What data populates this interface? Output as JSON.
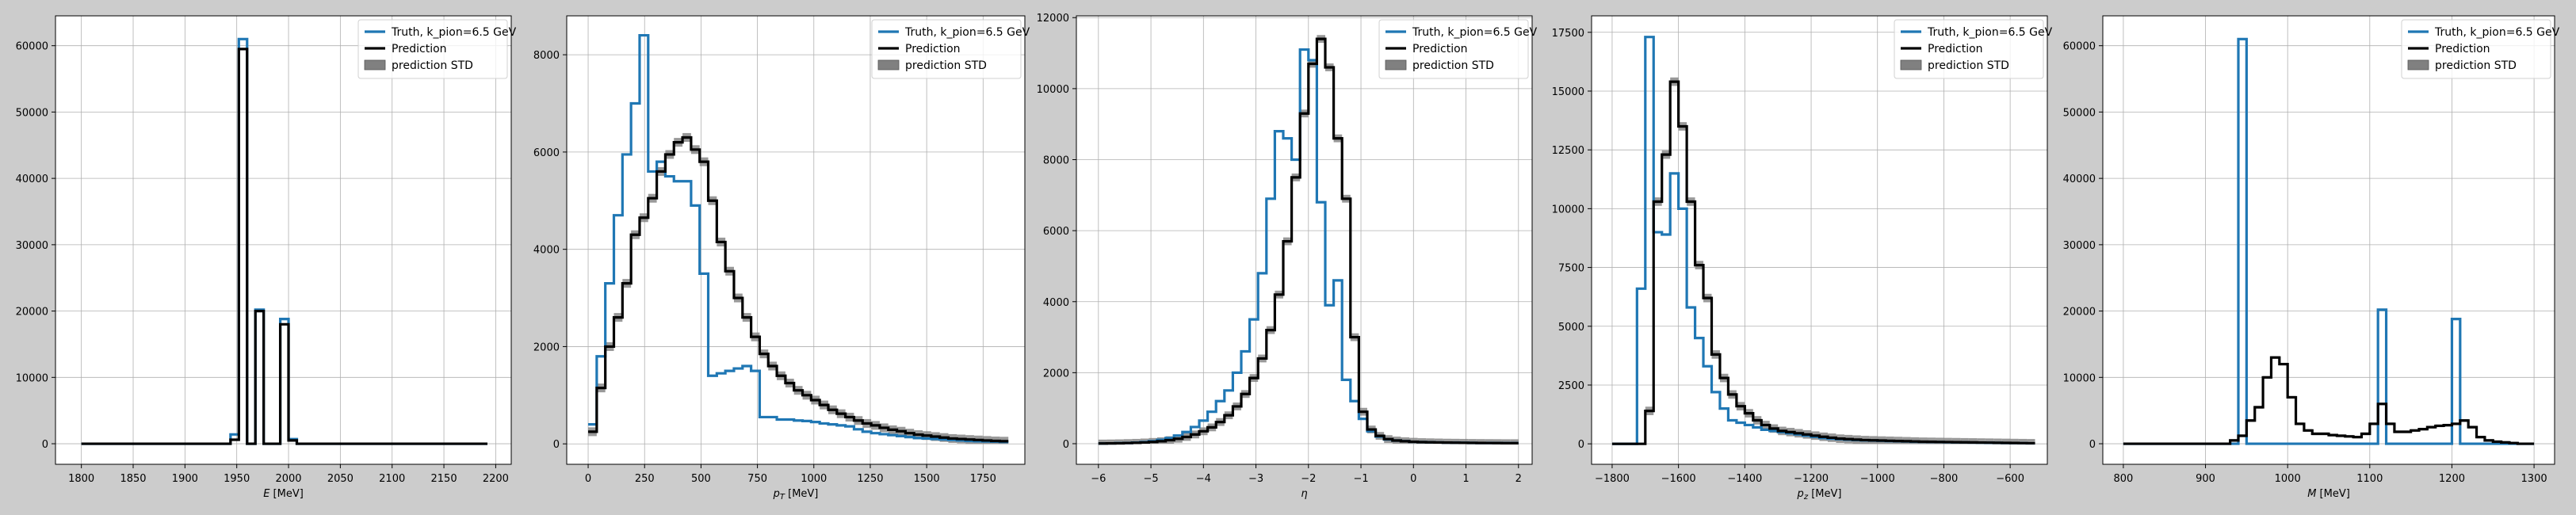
{
  "figure": {
    "background": "#cccccc"
  },
  "colors": {
    "truth": "#1f77b4",
    "prediction": "#000000",
    "std": "#808080",
    "grid": "#b0b0b0"
  },
  "legend": {
    "truth": "Truth, k_pion=6.5 GeV",
    "prediction": "Prediction",
    "std": "prediction STD",
    "placement": "top-right"
  },
  "chart_data": [
    {
      "type": "histogram",
      "name": "energy",
      "xlabel": {
        "pre": "",
        "sym": "E",
        "sub": "",
        "post": " [MeV]"
      },
      "ylabel": "",
      "grid": true,
      "xlim": [
        1775,
        2215
      ],
      "ylim": [
        -3100,
        64500
      ],
      "xticks": [
        1800,
        1850,
        1900,
        1950,
        2000,
        2050,
        2100,
        2150,
        2200
      ],
      "xtick_labels": [
        "1800",
        "1850",
        "1900",
        "1950",
        "2000",
        "2050",
        "2100",
        "2150",
        "2200"
      ],
      "yticks": [
        0,
        10000,
        20000,
        30000,
        40000,
        50000,
        60000
      ],
      "ytick_labels": [
        "0",
        "10000",
        "20000",
        "30000",
        "40000",
        "50000",
        "60000"
      ],
      "bins": {
        "start": 1800,
        "width": 8,
        "count": 49
      },
      "truth": [
        0,
        0,
        0,
        0,
        0,
        0,
        0,
        0,
        0,
        0,
        0,
        0,
        0,
        0,
        0,
        0,
        0,
        0,
        1400,
        61000,
        0,
        20200,
        0,
        0,
        18800,
        700,
        0,
        0,
        0,
        0,
        0,
        0,
        0,
        0,
        0,
        0,
        0,
        0,
        0,
        0,
        0,
        0,
        0,
        0,
        0,
        0,
        0,
        0,
        0
      ],
      "prediction": [
        0,
        0,
        0,
        0,
        0,
        0,
        0,
        0,
        0,
        0,
        0,
        0,
        0,
        0,
        0,
        0,
        0,
        0,
        600,
        59500,
        0,
        20000,
        0,
        0,
        18000,
        500,
        0,
        0,
        0,
        0,
        0,
        0,
        0,
        0,
        0,
        0,
        0,
        0,
        0,
        0,
        0,
        0,
        0,
        0,
        0,
        0,
        0,
        0,
        0
      ]
    },
    {
      "type": "histogram",
      "name": "pt",
      "xlabel": {
        "pre": "",
        "sym": "p",
        "sub": "T",
        "post": " [MeV]"
      },
      "ylabel": "",
      "grid": true,
      "xlim": [
        -95,
        1935
      ],
      "ylim": [
        -420,
        8800
      ],
      "xticks": [
        0,
        250,
        500,
        750,
        1000,
        1250,
        1500,
        1750
      ],
      "xtick_labels": [
        "0",
        "250",
        "500",
        "750",
        "1000",
        "1250",
        "1500",
        "1750"
      ],
      "yticks": [
        0,
        2000,
        4000,
        6000,
        8000
      ],
      "ytick_labels": [
        "0",
        "2000",
        "4000",
        "6000",
        "8000"
      ],
      "bins": {
        "start": 0,
        "width": 38,
        "count": 49
      },
      "truth": [
        400,
        1800,
        3300,
        4700,
        5950,
        7000,
        8400,
        5600,
        5800,
        5500,
        5400,
        5400,
        4900,
        3500,
        1400,
        1450,
        1500,
        1550,
        1600,
        1500,
        550,
        550,
        500,
        500,
        480,
        470,
        450,
        420,
        400,
        380,
        360,
        300,
        250,
        220,
        200,
        180,
        160,
        140,
        120,
        110,
        100,
        90,
        80,
        70,
        60,
        55,
        50,
        45,
        40
      ],
      "prediction": [
        250,
        1150,
        2000,
        2600,
        3300,
        4300,
        4650,
        5050,
        5600,
        5950,
        6200,
        6300,
        6050,
        5800,
        5000,
        4150,
        3550,
        3000,
        2600,
        2200,
        1850,
        1600,
        1400,
        1250,
        1100,
        1000,
        900,
        800,
        700,
        620,
        550,
        480,
        420,
        380,
        330,
        290,
        260,
        220,
        190,
        170,
        150,
        130,
        110,
        100,
        90,
        80,
        70,
        60,
        55
      ],
      "std_band": 90
    },
    {
      "type": "histogram",
      "name": "eta",
      "xlabel": {
        "pre": "",
        "sym": "η",
        "sub": "",
        "post": ""
      },
      "ylabel": "",
      "grid": true,
      "xlim": [
        -6.42,
        2.26
      ],
      "ylim": [
        -580,
        12050
      ],
      "xticks": [
        -6,
        -5,
        -4,
        -3,
        -2,
        -1,
        0,
        1,
        2
      ],
      "xtick_labels": [
        "−6",
        "−5",
        "−4",
        "−3",
        "−2",
        "−1",
        "0",
        "1",
        "2"
      ],
      "yticks": [
        0,
        2000,
        4000,
        6000,
        8000,
        10000,
        12000
      ],
      "ytick_labels": [
        "0",
        "2000",
        "4000",
        "6000",
        "8000",
        "10000",
        "12000"
      ],
      "bins": {
        "start": -6,
        "width": 0.16,
        "count": 50
      },
      "truth": [
        5,
        10,
        15,
        20,
        30,
        45,
        70,
        110,
        160,
        230,
        330,
        470,
        650,
        900,
        1200,
        1500,
        2000,
        2600,
        3500,
        4800,
        6900,
        8800,
        8600,
        8000,
        11100,
        10800,
        6800,
        3900,
        4600,
        1800,
        1200,
        700,
        350,
        200,
        120,
        90,
        70,
        55,
        45,
        40,
        35,
        30,
        28,
        25,
        22,
        20,
        20,
        18,
        15,
        15
      ],
      "prediction": [
        5,
        8,
        12,
        18,
        25,
        35,
        50,
        70,
        100,
        140,
        190,
        260,
        350,
        460,
        610,
        800,
        1050,
        1400,
        1850,
        2400,
        3200,
        4200,
        5700,
        7500,
        9300,
        10700,
        11400,
        10600,
        8600,
        6900,
        3000,
        900,
        400,
        220,
        130,
        90,
        70,
        55,
        45,
        40,
        35,
        30,
        28,
        25,
        22,
        20,
        18,
        17,
        15,
        15
      ],
      "std_band": 110
    },
    {
      "type": "histogram",
      "name": "pz",
      "xlabel": {
        "pre": "",
        "sym": "p",
        "sub": "z",
        "post": " [MeV]"
      },
      "ylabel": "",
      "grid": true,
      "xlim": [
        -1862,
        -488
      ],
      "ylim": [
        -870,
        18200
      ],
      "xticks": [
        -1800,
        -1600,
        -1400,
        -1200,
        -1000,
        -800,
        -600
      ],
      "xtick_labels": [
        "−1800",
        "−1600",
        "−1400",
        "−1200",
        "−1000",
        "−800",
        "−600"
      ],
      "yticks": [
        0,
        2500,
        5000,
        7500,
        10000,
        12500,
        15000,
        17500
      ],
      "ytick_labels": [
        "0",
        "2500",
        "5000",
        "7500",
        "10000",
        "12500",
        "15000",
        "17500"
      ],
      "bins": {
        "start": -1800,
        "width": 25,
        "count": 51
      },
      "truth": [
        0,
        0,
        0,
        6600,
        17300,
        9000,
        8900,
        11500,
        10000,
        5800,
        4500,
        3300,
        2200,
        1500,
        1000,
        900,
        800,
        700,
        600,
        550,
        500,
        450,
        400,
        350,
        300,
        250,
        220,
        200,
        180,
        160,
        150,
        140,
        130,
        120,
        110,
        100,
        90,
        85,
        80,
        75,
        70,
        65,
        60,
        55,
        50,
        45,
        40,
        35,
        30,
        25,
        20
      ],
      "prediction": [
        0,
        0,
        0,
        0,
        1400,
        10300,
        12300,
        15400,
        13500,
        10300,
        7600,
        6200,
        3800,
        2800,
        2100,
        1600,
        1300,
        1000,
        800,
        650,
        550,
        500,
        450,
        400,
        350,
        300,
        260,
        220,
        200,
        180,
        160,
        150,
        140,
        130,
        120,
        110,
        100,
        90,
        85,
        80,
        75,
        70,
        65,
        60,
        55,
        50,
        45,
        40,
        35,
        30,
        25
      ],
      "std_band": 180
    },
    {
      "type": "histogram",
      "name": "mass",
      "xlabel": {
        "pre": "",
        "sym": "M",
        "sub": "",
        "post": " [MeV]"
      },
      "ylabel": "",
      "grid": true,
      "xlim": [
        775,
        1325
      ],
      "ylim": [
        -3100,
        64500
      ],
      "xticks": [
        800,
        900,
        1000,
        1100,
        1200,
        1300
      ],
      "xtick_labels": [
        "800",
        "900",
        "1000",
        "1100",
        "1200",
        "1300"
      ],
      "yticks": [
        0,
        10000,
        20000,
        30000,
        40000,
        50000,
        60000
      ],
      "ytick_labels": [
        "0",
        "10000",
        "20000",
        "30000",
        "40000",
        "50000",
        "60000"
      ],
      "bins": {
        "start": 800,
        "width": 10,
        "count": 50
      },
      "truth": [
        0,
        0,
        0,
        0,
        0,
        0,
        0,
        0,
        0,
        0,
        0,
        0,
        0,
        0,
        61000,
        0,
        0,
        0,
        0,
        0,
        0,
        0,
        0,
        0,
        0,
        0,
        0,
        0,
        0,
        0,
        0,
        20200,
        0,
        0,
        0,
        0,
        0,
        0,
        0,
        0,
        18800,
        0,
        0,
        0,
        0,
        0,
        0,
        0,
        0,
        0
      ],
      "prediction": [
        0,
        0,
        0,
        0,
        0,
        0,
        0,
        0,
        0,
        0,
        0,
        0,
        0,
        500,
        1200,
        3500,
        5500,
        10000,
        13000,
        12000,
        7000,
        3000,
        2000,
        1500,
        1500,
        1300,
        1200,
        1100,
        1000,
        1500,
        3000,
        6000,
        3000,
        1800,
        1800,
        2000,
        2200,
        2500,
        2700,
        2800,
        3000,
        3500,
        2500,
        1000,
        500,
        300,
        200,
        100,
        0,
        0
      ],
      "std_band": 200
    }
  ]
}
